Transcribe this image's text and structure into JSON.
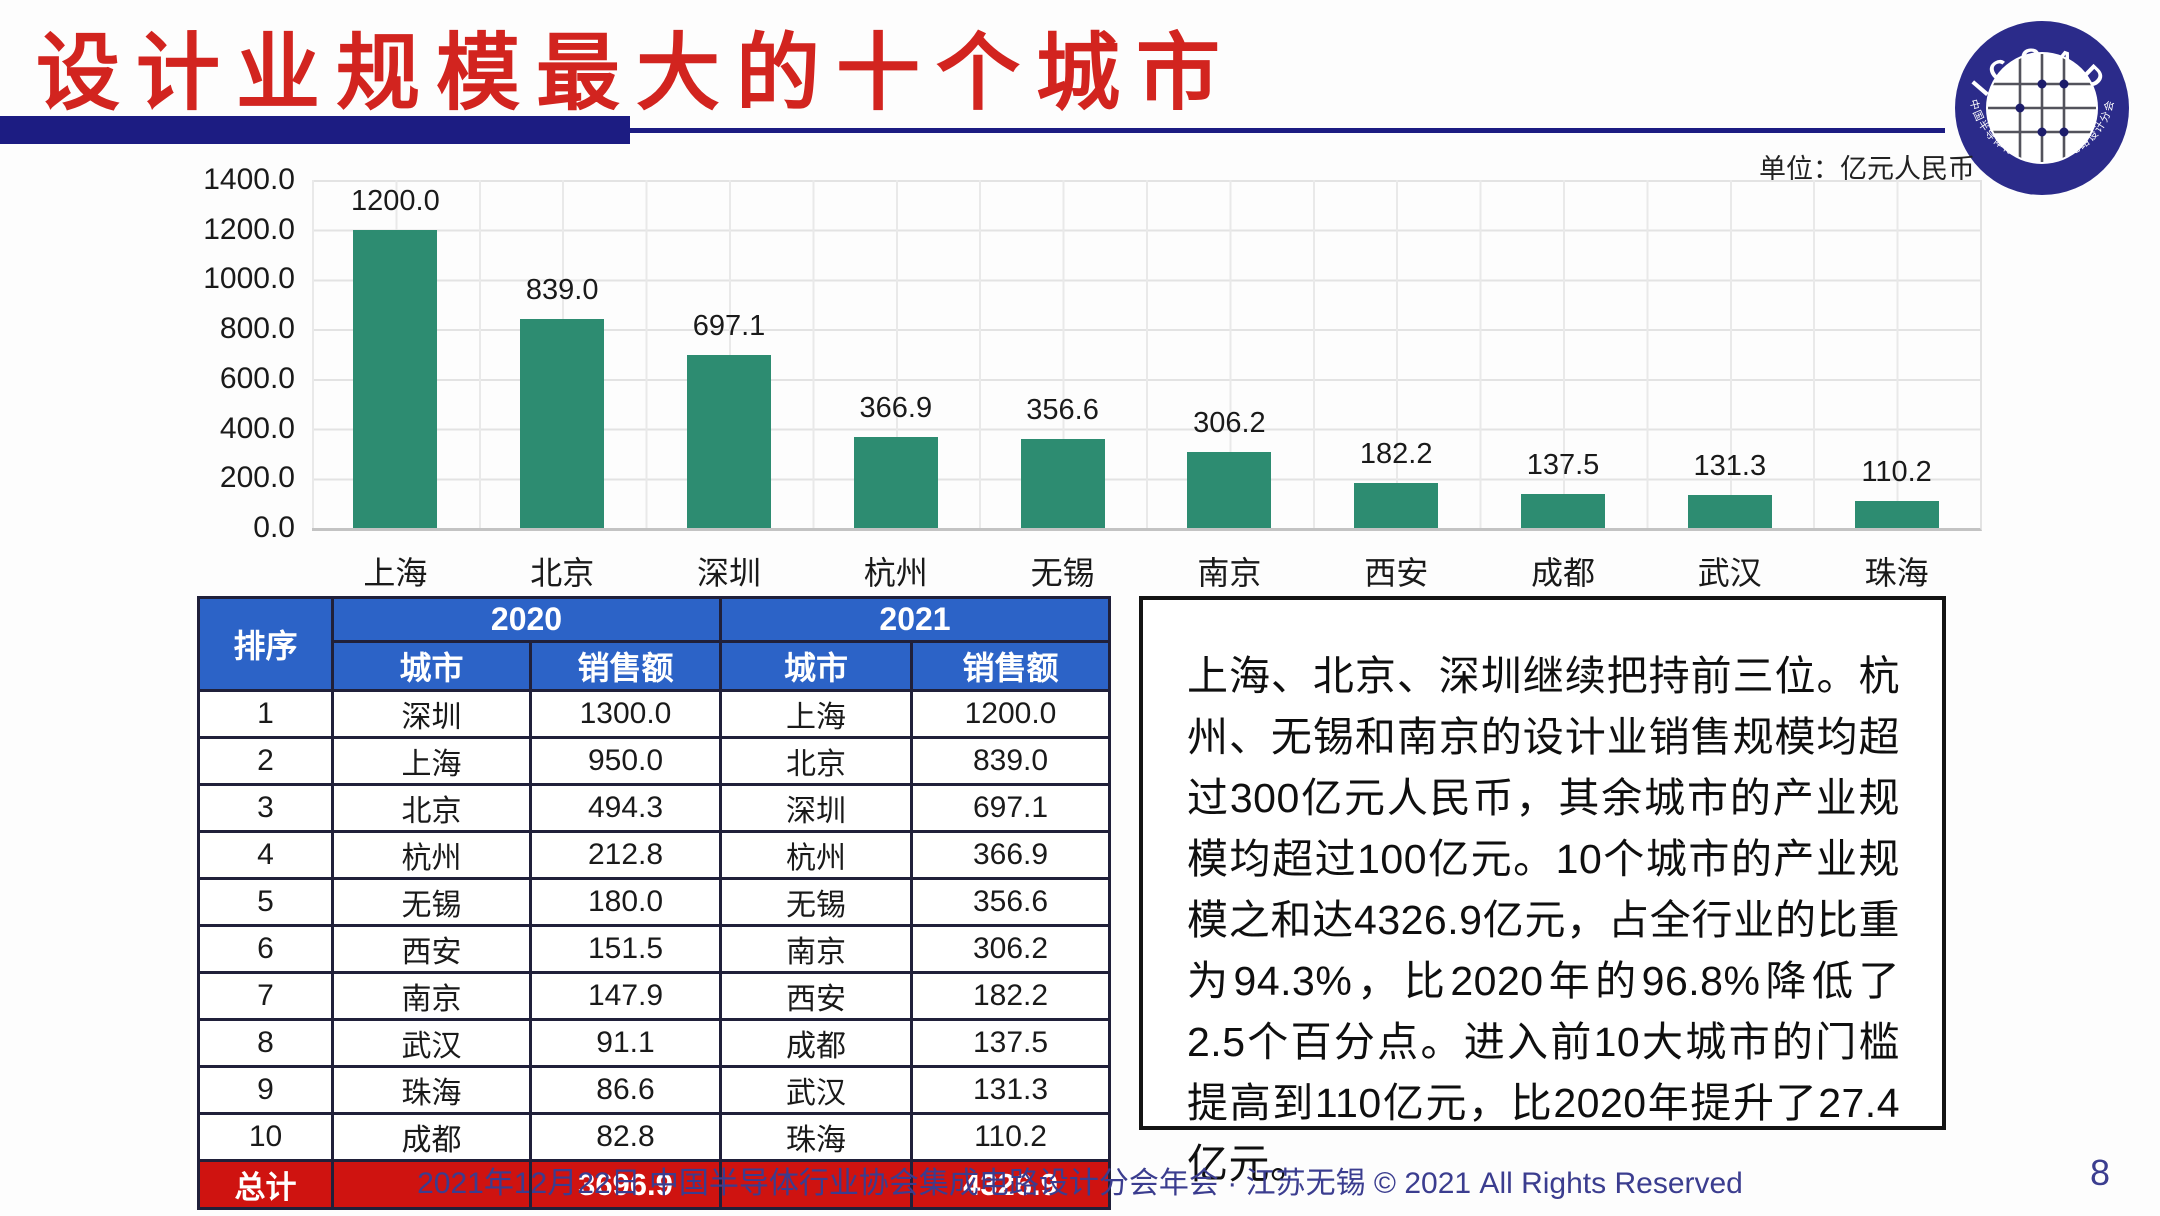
{
  "header": {
    "title": "设计业规模最大的十个城市",
    "unit_label": "单位：亿元人民币",
    "logo": {
      "top_text": "ICCAD",
      "bottom_text": "中国半导体行业协会集成电路设计分会"
    }
  },
  "chart_data": {
    "type": "bar",
    "title": "设计业规模最大的十个城市",
    "unit": "亿元人民币",
    "categories": [
      "上海",
      "北京",
      "深圳",
      "杭州",
      "无锡",
      "南京",
      "西安",
      "成都",
      "武汉",
      "珠海"
    ],
    "values": [
      1200.0,
      839.0,
      697.1,
      366.9,
      356.6,
      306.2,
      182.2,
      137.5,
      131.3,
      110.2
    ],
    "ylim": [
      0,
      1400
    ],
    "ytick_step": 200,
    "yticks": [
      "0.0",
      "200.0",
      "400.0",
      "600.0",
      "800.0",
      "1000.0",
      "1200.0",
      "1400.0"
    ],
    "grid": true,
    "legend": "none",
    "bar_color": "#2d8c71"
  },
  "table": {
    "rank_header": "排序",
    "year_2020": "2020",
    "year_2021": "2021",
    "city_header": "城市",
    "sales_header": "销售额",
    "rows": [
      [
        "1",
        "深圳",
        "1300.0",
        "上海",
        "1200.0"
      ],
      [
        "2",
        "上海",
        "950.0",
        "北京",
        "839.0"
      ],
      [
        "3",
        "北京",
        "494.3",
        "深圳",
        "697.1"
      ],
      [
        "4",
        "杭州",
        "212.8",
        "杭州",
        "366.9"
      ],
      [
        "5",
        "无锡",
        "180.0",
        "无锡",
        "356.6"
      ],
      [
        "6",
        "西安",
        "151.5",
        "南京",
        "306.2"
      ],
      [
        "7",
        "南京",
        "147.9",
        "西安",
        "182.2"
      ],
      [
        "8",
        "武汉",
        "91.1",
        "成都",
        "137.5"
      ],
      [
        "9",
        "珠海",
        "86.6",
        "武汉",
        "131.3"
      ],
      [
        "10",
        "成都",
        "82.8",
        "珠海",
        "110.2"
      ]
    ],
    "total_label": "总计",
    "total_2020": "3696.9",
    "total_2021": "4326.9"
  },
  "commentary": "上海、北京、深圳继续把持前三位。杭州、无锡和南京的设计业销售规模均超过300亿元人民币，其余城市的产业规模均超过100亿元。10个城市的产业规模之和达4326.9亿元，占全行业的比重为94.3%，比2020年的96.8%降低了2.5个百分点。进入前10大城市的门槛提高到110亿元，比2020年提升了27.4亿元。",
  "footer": {
    "text": "2021年12月22日 中国半导体行业协会集成电路设计分会年会 · 江苏无锡 © 2021 All Rights Reserved",
    "page_number": "8"
  },
  "colors": {
    "title_red": "#d2241f",
    "bar_teal": "#2d8c71",
    "table_header_blue": "#2c63c7",
    "total_row_red": "#cf1310",
    "divider_navy": "#1c1c82",
    "footer_navy": "#3b3d8f"
  }
}
